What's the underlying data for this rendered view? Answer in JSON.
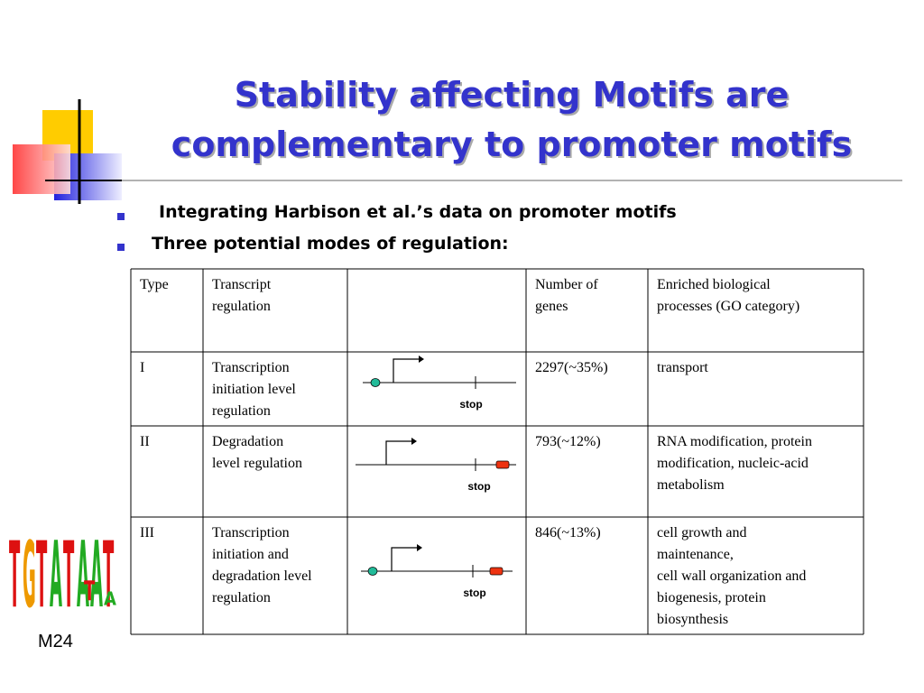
{
  "title": [
    "Stability affecting Motifs are",
    "complementary to promoter motifs"
  ],
  "bullets": [
    "Integrating Harbison et al.’s data on promoter motifs",
    "Three potential modes of regulation:"
  ],
  "table": {
    "header": [
      [
        "Type"
      ],
      [
        "Transcript",
        "regulation"
      ],
      [],
      [
        "Number of",
        "genes"
      ],
      [
        "Enriched biological",
        "processes (GO category)"
      ]
    ],
    "rows": [
      {
        "type": [
          "I"
        ],
        "regulation": [
          "Transcription",
          "initiation level",
          "regulation"
        ],
        "diagram_label": "stop",
        "genes": [
          "2297(~35%)"
        ],
        "processes": [
          "transport"
        ]
      },
      {
        "type": [
          "II"
        ],
        "regulation": [
          "Degradation",
          "level regulation"
        ],
        "diagram_label": "stop",
        "genes": [
          "793(~12%)"
        ],
        "processes": [
          "RNA modification, protein",
          "modification, nucleic-acid",
          "metabolism"
        ]
      },
      {
        "type": [
          "III"
        ],
        "regulation": [
          "Transcription",
          "initiation and",
          "degradation level",
          "regulation"
        ],
        "diagram_label": "stop",
        "genes": [
          "846(~13%)"
        ],
        "processes": [
          "cell growth and",
          "maintenance,",
          "cell wall organization and",
          "biogenesis, protein",
          "biosynthesis"
        ]
      }
    ]
  },
  "logo": [
    "T",
    "G",
    "T",
    "A",
    "T",
    "A",
    "A",
    "T",
    "T",
    "A"
  ],
  "footer": "M24"
}
